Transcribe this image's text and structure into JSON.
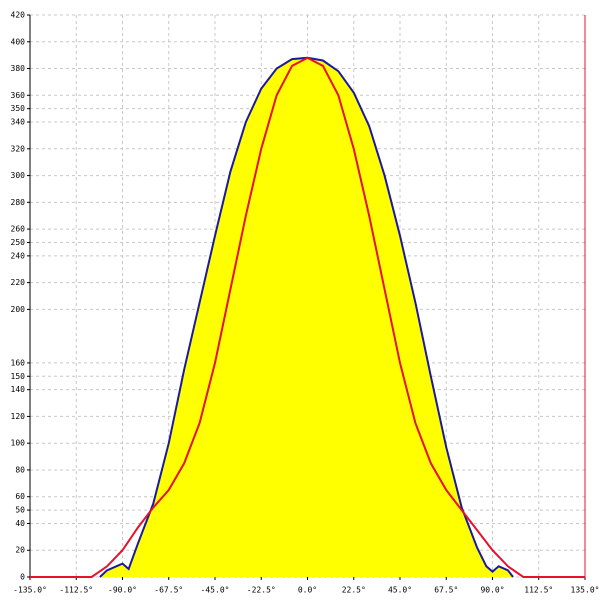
{
  "chart_data": {
    "type": "line",
    "xlim": [
      -135,
      135
    ],
    "ylim": [
      0,
      420
    ],
    "xticks": [
      {
        "value": -135,
        "label": "-135.0°"
      },
      {
        "value": -112.5,
        "label": "-112.5°"
      },
      {
        "value": -90,
        "label": "-90.0°"
      },
      {
        "value": -67.5,
        "label": "-67.5°"
      },
      {
        "value": -45,
        "label": "-45.0°"
      },
      {
        "value": -22.5,
        "label": "-22.5°"
      },
      {
        "value": 0,
        "label": "0.0°"
      },
      {
        "value": 22.5,
        "label": "22.5°"
      },
      {
        "value": 45,
        "label": "45.0°"
      },
      {
        "value": 67.5,
        "label": "67.5°"
      },
      {
        "value": 90,
        "label": "90.0°"
      },
      {
        "value": 112.5,
        "label": "112.5°"
      },
      {
        "value": 135,
        "label": "135.0°"
      }
    ],
    "yticks": [
      0,
      20,
      40,
      50,
      60,
      80,
      100,
      120,
      140,
      150,
      160,
      200,
      220,
      240,
      250,
      260,
      280,
      300,
      320,
      340,
      350,
      360,
      380,
      400,
      420
    ],
    "grid": true,
    "series": [
      {
        "color": "#1a1aa0",
        "fill": "#ffff00",
        "x": [
          -101,
          -97.5,
          -93,
          -90,
          -87,
          -82.5,
          -75,
          -67.5,
          -60,
          -52.5,
          -45,
          -37.5,
          -30,
          -22.5,
          -15,
          -7.5,
          0,
          7.5,
          15,
          22.5,
          30,
          37.5,
          45,
          52.5,
          60,
          67.5,
          75,
          82.5,
          87,
          90,
          93,
          97.5,
          100
        ],
        "values": [
          0,
          5,
          8,
          10,
          6,
          25,
          55,
          100,
          155,
          205,
          255,
          303,
          340,
          365,
          380,
          387,
          388,
          386,
          378,
          362,
          337,
          300,
          255,
          205,
          150,
          97,
          52,
          22,
          8,
          4,
          8,
          5,
          0
        ]
      },
      {
        "color": "#e8102a",
        "x": [
          -135,
          -105,
          -97.5,
          -90,
          -82.5,
          -75,
          -67.5,
          -60,
          -52.5,
          -45,
          -37.5,
          -30,
          -22.5,
          -15,
          -7.5,
          0,
          7.5,
          15,
          22.5,
          30,
          37.5,
          45,
          52.5,
          60,
          67.5,
          75,
          82.5,
          90,
          97.5,
          105,
          135
        ],
        "values": [
          0,
          0,
          8,
          20,
          37,
          52,
          65,
          85,
          115,
          160,
          215,
          270,
          320,
          360,
          382,
          388,
          382,
          360,
          320,
          270,
          215,
          160,
          115,
          85,
          65,
          50,
          35,
          20,
          8,
          0,
          0
        ]
      }
    ]
  }
}
